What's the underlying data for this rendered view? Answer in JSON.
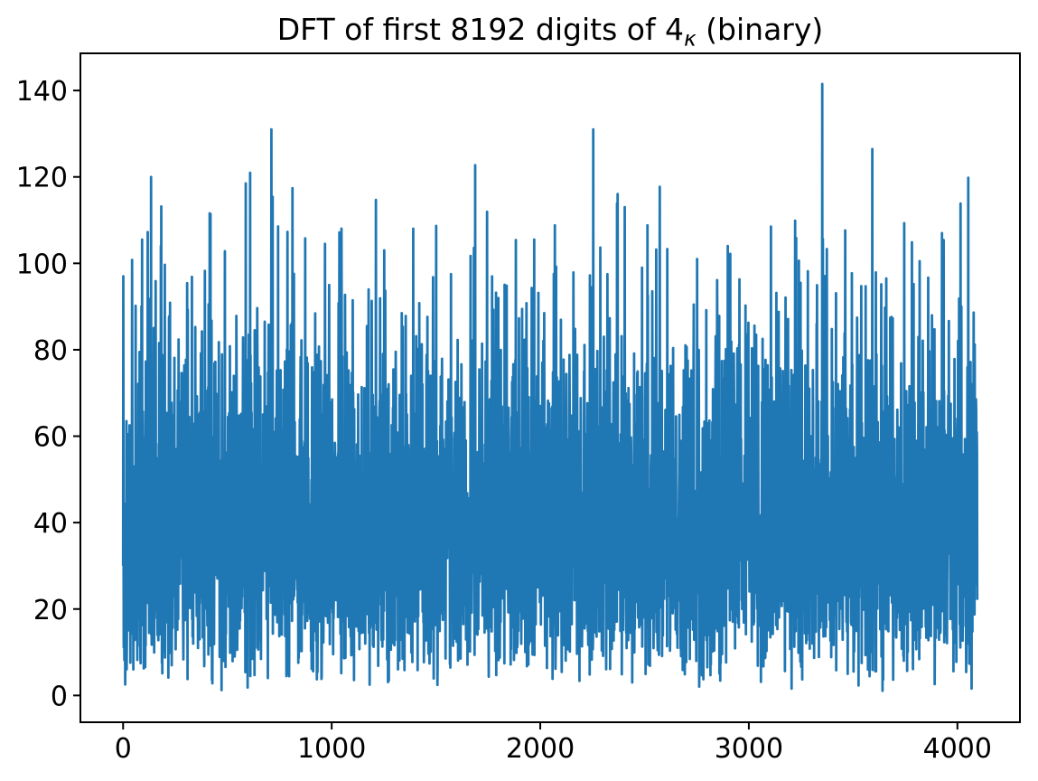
{
  "figure": {
    "background": "#ffffff",
    "title_parts": {
      "prefix": "DFT of first 8192 digits of 4",
      "subscript": "κ",
      "suffix": " (binary)"
    }
  },
  "chart_data": {
    "type": "line",
    "title": "DFT of first 8192 digits of 4κ (binary)",
    "xlabel": "",
    "ylabel": "",
    "legend": null,
    "grid": false,
    "line_color": "#1f77b4",
    "axis_color": "#000000",
    "x_ticks": [
      0,
      1000,
      2000,
      3000,
      4000
    ],
    "y_ticks": [
      0,
      20,
      40,
      60,
      80,
      100,
      120,
      140
    ],
    "xlim": [
      -204.75,
      4299.75
    ],
    "ylim": [
      -6.2,
      148.6
    ],
    "x_range": [
      0,
      4095
    ],
    "n_points": 4096,
    "signal_summary": {
      "description": "Noise-like DFT magnitude spectrum: dense band of values roughly between 15 and 65 across the whole x range, with isolated spikes up to ~141 and dips down to ~1",
      "typical_band": [
        15,
        65
      ],
      "distribution": "rayleigh",
      "sigma": 32,
      "seed": 20771,
      "min_clip": 0.4,
      "max_cap": 131
    },
    "notable_peaks": [
      {
        "x": 1,
        "y": 97.0
      },
      {
        "x": 43,
        "y": 100.8
      },
      {
        "x": 91,
        "y": 105.5
      },
      {
        "x": 134,
        "y": 120.0
      },
      {
        "x": 181,
        "y": 104.0
      },
      {
        "x": 419,
        "y": 111.4
      },
      {
        "x": 488,
        "y": 102.8
      },
      {
        "x": 588,
        "y": 118.5
      },
      {
        "x": 717,
        "y": 115.4
      },
      {
        "x": 812,
        "y": 117.4
      },
      {
        "x": 873,
        "y": 105.8
      },
      {
        "x": 968,
        "y": 104.5
      },
      {
        "x": 1192,
        "y": 91.3
      },
      {
        "x": 1391,
        "y": 108.0
      },
      {
        "x": 1486,
        "y": 96.8
      },
      {
        "x": 1572,
        "y": 97.5
      },
      {
        "x": 1688,
        "y": 122.7
      },
      {
        "x": 1883,
        "y": 105.4
      },
      {
        "x": 1971,
        "y": 105.5
      },
      {
        "x": 2070,
        "y": 108.8
      },
      {
        "x": 2242,
        "y": 94.5
      },
      {
        "x": 2405,
        "y": 113.0
      },
      {
        "x": 2488,
        "y": 99.0
      },
      {
        "x": 2556,
        "y": 103.2
      },
      {
        "x": 2573,
        "y": 117.7
      },
      {
        "x": 2609,
        "y": 103.3
      },
      {
        "x": 2752,
        "y": 101.0
      },
      {
        "x": 2899,
        "y": 104.0
      },
      {
        "x": 2955,
        "y": 96.3
      },
      {
        "x": 3106,
        "y": 108.5
      },
      {
        "x": 3240,
        "y": 100.6
      },
      {
        "x": 3352,
        "y": 141.5
      },
      {
        "x": 3374,
        "y": 103.3
      },
      {
        "x": 3560,
        "y": 94.7
      },
      {
        "x": 3659,
        "y": 96.5
      },
      {
        "x": 3745,
        "y": 109.3
      },
      {
        "x": 3819,
        "y": 100.5
      },
      {
        "x": 3934,
        "y": 105.4
      },
      {
        "x": 4052,
        "y": 119.8
      },
      {
        "x": 4078,
        "y": 88.6
      }
    ]
  }
}
